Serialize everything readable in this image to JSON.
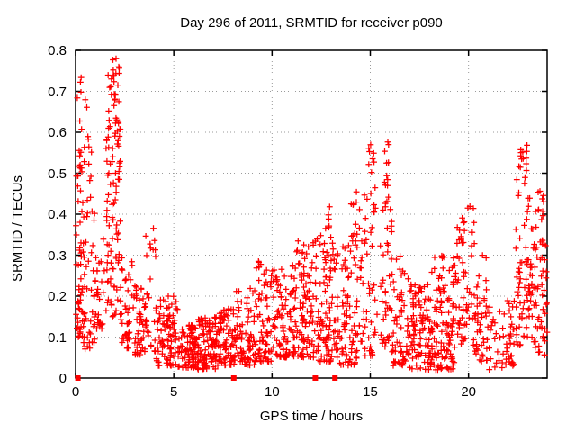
{
  "chart_data": {
    "type": "scatter",
    "title": "Day 296 of 2011, SRMTID for receiver p090",
    "xlabel": "GPS time / hours",
    "ylabel": "SRMTID / TECUs",
    "xlim": [
      0,
      24
    ],
    "ylim": [
      0,
      0.8
    ],
    "x_ticks": [
      0,
      5,
      10,
      15,
      20
    ],
    "x_tick_labels": [
      "0",
      "5",
      "10",
      "15",
      "20"
    ],
    "y_ticks": [
      0,
      0.1,
      0.2,
      0.3,
      0.4,
      0.5,
      0.6,
      0.7,
      0.8
    ],
    "y_tick_labels": [
      "0",
      "0.1",
      "0.2",
      "0.3",
      "0.4",
      "0.5",
      "0.6",
      "0.7",
      "0.8"
    ],
    "grid": "dotted-major-both-axes",
    "legend": "none",
    "colors": {
      "marker": "#ff0000",
      "grid": "#9a9a9a",
      "border": "#000000",
      "background": "#ffffff",
      "text": "#000000"
    },
    "series": [
      {
        "marker": "plus",
        "color": "#ff0000",
        "description": "SRMTID values vs GPS time; ~2000 points summarized as density clusters [t_start_h, t_end_h, count, y_min_TECU, y_max_TECU, low_skew]",
        "point_clusters": [
          [
            0.02,
            0.45,
            55,
            0.1,
            0.55,
            1.5
          ],
          [
            0.05,
            0.5,
            10,
            0.55,
            0.74,
            1.0
          ],
          [
            0.35,
            1.0,
            45,
            0.07,
            0.48,
            1.4
          ],
          [
            0.55,
            0.85,
            8,
            0.48,
            0.68,
            1.0
          ],
          [
            1.0,
            1.5,
            28,
            0.12,
            0.38,
            1.3
          ],
          [
            1.55,
            2.3,
            95,
            0.15,
            0.66,
            1.1
          ],
          [
            1.65,
            2.25,
            22,
            0.66,
            0.785,
            1.0
          ],
          [
            2.3,
            3.0,
            40,
            0.07,
            0.3,
            1.4
          ],
          [
            3.0,
            3.6,
            45,
            0.05,
            0.24,
            1.3
          ],
          [
            3.55,
            4.1,
            30,
            0.06,
            0.37,
            1.4
          ],
          [
            4.1,
            5.2,
            85,
            0.03,
            0.2,
            1.5
          ],
          [
            5.2,
            6.2,
            90,
            0.025,
            0.13,
            1.3
          ],
          [
            6.2,
            7.3,
            110,
            0.02,
            0.15,
            1.3
          ],
          [
            7.3,
            8.1,
            70,
            0.03,
            0.17,
            1.4
          ],
          [
            8.1,
            9.1,
            75,
            0.03,
            0.23,
            1.5
          ],
          [
            9.1,
            10.1,
            75,
            0.04,
            0.28,
            1.6
          ],
          [
            9.3,
            9.5,
            3,
            0.27,
            0.34,
            1.0
          ],
          [
            10.1,
            11.2,
            95,
            0.05,
            0.28,
            1.5
          ],
          [
            11.2,
            12.3,
            95,
            0.05,
            0.34,
            1.5
          ],
          [
            12.3,
            13.3,
            90,
            0.04,
            0.36,
            1.5
          ],
          [
            12.7,
            12.95,
            6,
            0.36,
            0.43,
            1.0
          ],
          [
            13.3,
            14.35,
            85,
            0.03,
            0.34,
            1.4
          ],
          [
            14.0,
            14.35,
            10,
            0.34,
            0.46,
            1.0
          ],
          [
            14.4,
            15.35,
            55,
            0.05,
            0.46,
            1.3
          ],
          [
            14.8,
            15.25,
            9,
            0.46,
            0.57,
            1.0
          ],
          [
            15.5,
            16.1,
            45,
            0.06,
            0.46,
            1.15
          ],
          [
            15.7,
            16.05,
            10,
            0.46,
            0.585,
            1.0
          ],
          [
            16.1,
            17.0,
            65,
            0.03,
            0.3,
            1.6
          ],
          [
            17.0,
            18.1,
            95,
            0.02,
            0.23,
            1.4
          ],
          [
            18.1,
            19.35,
            115,
            0.02,
            0.3,
            1.5
          ],
          [
            19.35,
            20.3,
            65,
            0.08,
            0.43,
            1.3
          ],
          [
            20.3,
            21.0,
            45,
            0.04,
            0.3,
            1.4
          ],
          [
            21.0,
            21.9,
            25,
            0.02,
            0.18,
            1.3
          ],
          [
            21.9,
            22.4,
            30,
            0.03,
            0.2,
            1.2
          ],
          [
            22.4,
            23.3,
            75,
            0.08,
            0.51,
            1.15
          ],
          [
            22.55,
            23.0,
            12,
            0.51,
            0.578,
            1.0
          ],
          [
            23.3,
            24.0,
            65,
            0.05,
            0.46,
            1.4
          ]
        ]
      },
      {
        "marker": "filled-square",
        "color": "#ff0000",
        "description": "points plotted at SRMTID = 0",
        "points": [
          [
            0.12,
            0
          ],
          [
            8.05,
            0
          ],
          [
            12.2,
            0
          ],
          [
            13.2,
            0
          ]
        ]
      }
    ]
  }
}
